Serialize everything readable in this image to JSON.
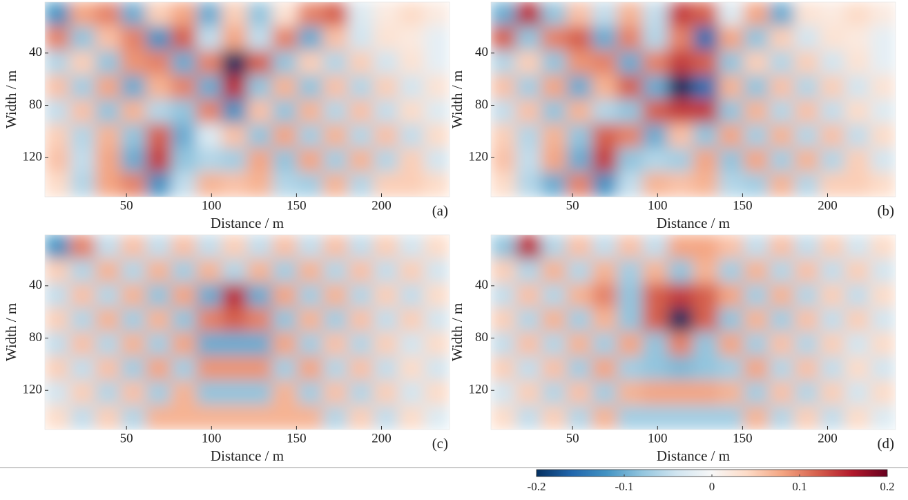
{
  "chart_data": [
    {
      "type": "heatmap",
      "panel_label": "(a)",
      "x_label": "Distance / m",
      "y_label": "Width / m",
      "xlim": [
        2,
        240
      ],
      "ylim": [
        1,
        150
      ],
      "y_reversed": true,
      "xticks": [
        50,
        100,
        150,
        200
      ],
      "yticks": [
        40,
        80,
        120
      ],
      "values": [
        [
          -0.12,
          0.08,
          0.1,
          -0.1,
          0.05,
          0.08,
          -0.1,
          0.05,
          -0.08,
          0.03,
          0.1,
          0.12,
          -0.03,
          0.02,
          0.04,
          0.02
        ],
        [
          0.1,
          -0.08,
          0.06,
          0.1,
          -0.12,
          0.12,
          -0.05,
          0.08,
          -0.05,
          0.1,
          -0.1,
          0.06,
          -0.04,
          0.03,
          0.02,
          -0.02
        ],
        [
          -0.06,
          0.05,
          -0.08,
          0.09,
          0.1,
          -0.1,
          0.1,
          -0.2,
          0.12,
          -0.08,
          0.05,
          -0.06,
          0.05,
          -0.04,
          0.03,
          -0.02
        ],
        [
          0.06,
          -0.07,
          0.08,
          -0.1,
          0.07,
          0.1,
          -0.1,
          0.15,
          -0.08,
          0.07,
          -0.08,
          0.06,
          -0.06,
          0.05,
          -0.04,
          0.03
        ],
        [
          -0.05,
          0.06,
          -0.08,
          0.07,
          -0.06,
          -0.08,
          0.1,
          -0.12,
          0.06,
          -0.08,
          0.07,
          -0.06,
          0.06,
          -0.05,
          0.04,
          -0.03
        ],
        [
          0.05,
          -0.06,
          0.07,
          -0.08,
          0.12,
          -0.1,
          -0.03,
          0.06,
          -0.08,
          0.08,
          -0.07,
          0.07,
          -0.06,
          0.06,
          -0.05,
          0.04
        ],
        [
          0.06,
          -0.05,
          0.08,
          -0.1,
          0.14,
          -0.08,
          -0.06,
          -0.07,
          0.08,
          -0.08,
          0.08,
          -0.07,
          0.07,
          -0.06,
          0.05,
          -0.04
        ],
        [
          0.04,
          -0.06,
          0.08,
          0.1,
          -0.12,
          -0.05,
          0.07,
          0.06,
          0.07,
          -0.06,
          -0.07,
          0.07,
          -0.06,
          0.05,
          0.05,
          0.04
        ]
      ]
    },
    {
      "type": "heatmap",
      "panel_label": "(b)",
      "x_label": "Distance / m",
      "y_label": "Width / m",
      "xlim": [
        2,
        240
      ],
      "ylim": [
        1,
        150
      ],
      "y_reversed": true,
      "xticks": [
        50,
        100,
        150,
        200
      ],
      "yticks": [
        40,
        80,
        120
      ],
      "values": [
        [
          -0.1,
          0.15,
          -0.08,
          0.06,
          -0.05,
          0.07,
          -0.05,
          0.14,
          0.12,
          -0.03,
          0.08,
          -0.1,
          0.03,
          0.02,
          0.04,
          0.02
        ],
        [
          0.12,
          -0.08,
          0.1,
          0.12,
          -0.1,
          0.1,
          -0.06,
          0.1,
          -0.15,
          0.08,
          -0.08,
          0.05,
          -0.04,
          0.03,
          0.02,
          -0.02
        ],
        [
          -0.06,
          0.05,
          -0.08,
          0.09,
          0.1,
          -0.1,
          0.1,
          0.14,
          0.12,
          -0.08,
          0.05,
          -0.06,
          0.05,
          -0.04,
          0.03,
          -0.02
        ],
        [
          0.06,
          -0.07,
          0.08,
          -0.1,
          0.07,
          0.12,
          -0.1,
          -0.2,
          -0.15,
          0.07,
          -0.08,
          0.06,
          -0.06,
          0.05,
          -0.04,
          0.03
        ],
        [
          -0.05,
          0.06,
          -0.08,
          0.07,
          -0.06,
          -0.08,
          0.12,
          0.14,
          0.14,
          -0.08,
          0.07,
          -0.06,
          0.06,
          -0.05,
          0.04,
          -0.03
        ],
        [
          0.05,
          -0.06,
          0.07,
          -0.08,
          0.12,
          0.1,
          -0.1,
          0.06,
          -0.08,
          0.08,
          -0.07,
          0.07,
          -0.06,
          0.06,
          -0.05,
          0.04
        ],
        [
          0.06,
          -0.05,
          0.08,
          -0.1,
          0.14,
          -0.08,
          -0.06,
          -0.07,
          0.08,
          -0.08,
          0.08,
          -0.07,
          0.07,
          -0.06,
          0.05,
          -0.04
        ],
        [
          0.04,
          -0.06,
          -0.1,
          0.1,
          -0.12,
          -0.05,
          0.07,
          0.06,
          0.07,
          -0.06,
          -0.07,
          0.07,
          -0.06,
          0.05,
          0.05,
          0.04
        ]
      ]
    },
    {
      "type": "heatmap",
      "panel_label": "(c)",
      "x_label": "Distance / m",
      "y_label": "Width / m",
      "xlim": [
        2,
        240
      ],
      "ylim": [
        1,
        150
      ],
      "y_reversed": true,
      "xticks": [
        50,
        100,
        150,
        200
      ],
      "yticks": [
        40,
        80,
        120
      ],
      "values": [
        [
          -0.12,
          0.1,
          -0.05,
          0.06,
          -0.05,
          0.06,
          -0.05,
          0.05,
          -0.05,
          0.06,
          -0.05,
          0.06,
          -0.05,
          0.05,
          -0.04,
          0.04
        ],
        [
          0.05,
          -0.06,
          0.07,
          -0.06,
          0.07,
          -0.07,
          0.07,
          -0.06,
          0.07,
          -0.07,
          0.07,
          -0.06,
          0.06,
          -0.05,
          0.05,
          -0.04
        ],
        [
          -0.05,
          0.06,
          -0.06,
          0.07,
          -0.08,
          0.08,
          -0.1,
          0.15,
          -0.1,
          0.08,
          -0.07,
          0.07,
          -0.06,
          0.05,
          -0.05,
          0.04
        ],
        [
          0.05,
          -0.06,
          0.07,
          -0.07,
          0.07,
          -0.08,
          0.1,
          0.12,
          0.1,
          -0.08,
          0.07,
          -0.07,
          0.06,
          -0.05,
          0.05,
          -0.04
        ],
        [
          -0.05,
          0.06,
          -0.06,
          0.07,
          -0.07,
          0.08,
          -0.1,
          -0.1,
          -0.1,
          0.08,
          -0.07,
          0.06,
          -0.06,
          0.05,
          -0.04,
          0.04
        ],
        [
          0.05,
          -0.05,
          0.06,
          -0.07,
          0.08,
          -0.07,
          0.09,
          0.09,
          0.09,
          -0.07,
          0.08,
          -0.06,
          0.06,
          -0.05,
          0.04,
          -0.04
        ],
        [
          -0.04,
          0.05,
          -0.06,
          0.06,
          -0.07,
          0.07,
          -0.08,
          -0.08,
          -0.08,
          0.07,
          -0.07,
          0.06,
          -0.06,
          0.05,
          -0.04,
          0.04
        ],
        [
          0.04,
          -0.05,
          0.05,
          -0.06,
          0.07,
          0.07,
          0.07,
          0.07,
          0.07,
          0.07,
          0.07,
          -0.06,
          0.05,
          -0.05,
          0.04,
          -0.03
        ]
      ]
    },
    {
      "type": "heatmap",
      "panel_label": "(d)",
      "x_label": "Distance / m",
      "y_label": "Width / m",
      "xlim": [
        2,
        240
      ],
      "ylim": [
        1,
        150
      ],
      "y_reversed": true,
      "xticks": [
        50,
        100,
        150,
        200
      ],
      "yticks": [
        40,
        80,
        120
      ],
      "values": [
        [
          -0.08,
          0.15,
          -0.06,
          0.06,
          -0.05,
          0.06,
          -0.05,
          0.08,
          0.08,
          0.06,
          -0.05,
          0.06,
          -0.05,
          0.05,
          -0.04,
          0.04
        ],
        [
          0.05,
          -0.06,
          0.07,
          -0.06,
          0.07,
          -0.07,
          0.07,
          -0.08,
          0.07,
          -0.07,
          0.07,
          -0.06,
          0.06,
          -0.05,
          0.05,
          -0.04
        ],
        [
          -0.05,
          0.06,
          -0.06,
          0.07,
          0.1,
          -0.08,
          0.12,
          0.14,
          0.12,
          0.08,
          -0.07,
          0.07,
          -0.06,
          0.05,
          -0.05,
          0.04
        ],
        [
          0.05,
          -0.06,
          0.07,
          -0.07,
          0.07,
          -0.08,
          0.12,
          -0.2,
          0.12,
          -0.08,
          0.07,
          -0.07,
          0.06,
          -0.05,
          0.05,
          -0.04
        ],
        [
          -0.05,
          0.06,
          -0.06,
          0.07,
          -0.07,
          0.08,
          -0.08,
          0.1,
          -0.08,
          0.08,
          -0.07,
          0.06,
          -0.06,
          0.05,
          -0.04,
          0.04
        ],
        [
          0.05,
          -0.05,
          0.06,
          -0.07,
          0.08,
          -0.07,
          -0.08,
          -0.09,
          -0.08,
          -0.07,
          0.08,
          -0.06,
          0.06,
          -0.05,
          0.04,
          -0.04
        ],
        [
          -0.04,
          0.05,
          -0.06,
          0.06,
          -0.07,
          0.07,
          0.08,
          0.08,
          0.08,
          0.07,
          -0.07,
          0.06,
          -0.06,
          0.05,
          -0.04,
          0.04
        ],
        [
          0.04,
          -0.05,
          0.05,
          -0.06,
          0.07,
          -0.07,
          -0.07,
          -0.07,
          -0.07,
          -0.07,
          0.07,
          -0.06,
          0.05,
          -0.05,
          0.04,
          -0.03
        ]
      ]
    }
  ],
  "colorbar": {
    "lim": [
      -0.2,
      0.2
    ],
    "ticks": [
      -0.2,
      -0.1,
      0,
      0.1,
      0.2
    ],
    "colors": [
      "#053061",
      "#2166ac",
      "#4393c3",
      "#92c5de",
      "#d1e5f0",
      "#f7f7f7",
      "#fddbc7",
      "#f4a582",
      "#d6604d",
      "#b2182b",
      "#67001f"
    ]
  }
}
